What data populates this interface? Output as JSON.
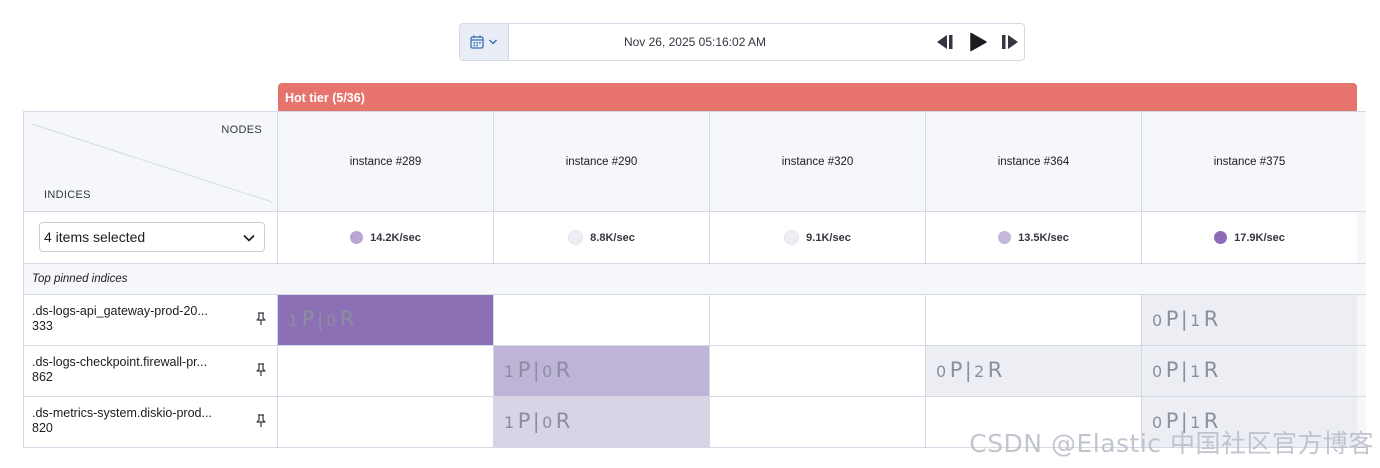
{
  "toolbar": {
    "datetime": "Nov 26, 2025 05:16:02 AM",
    "calendar_icon": "calendar-icon",
    "controls": [
      "step-back-icon",
      "play-icon",
      "step-forward-icon"
    ]
  },
  "tier": {
    "label": "Hot tier (5/36)",
    "color": "#e7746c"
  },
  "corner": {
    "nodes_label": "NODES",
    "indices_label": "INDICES"
  },
  "index_selector": {
    "value": "4 items selected"
  },
  "nodes": [
    {
      "name": "instance #289",
      "rate": "14.2K/sec",
      "dot_color": "#b9a6d6"
    },
    {
      "name": "instance #290",
      "rate": "8.8K/sec",
      "dot_color": "#eceef4"
    },
    {
      "name": "instance #320",
      "rate": "9.1K/sec",
      "dot_color": "#eceef4"
    },
    {
      "name": "instance #364",
      "rate": "13.5K/sec",
      "dot_color": "#c3b8dc"
    },
    {
      "name": "instance #375",
      "rate": "17.9K/sec",
      "dot_color": "#8d6bb8"
    }
  ],
  "pinned_label": "Top pinned indices",
  "indices": [
    {
      "name": ".ds-logs-api_gateway-prod-20...",
      "count": "333",
      "cells": [
        {
          "p": "1",
          "r": "0",
          "bg": "#8d6fb5",
          "shown": true
        },
        {
          "shown": false
        },
        {
          "shown": false
        },
        {
          "shown": false
        },
        {
          "p": "0",
          "r": "1",
          "bg": "#eceef4",
          "shown": true
        }
      ]
    },
    {
      "name": ".ds-logs-checkpoint.firewall-pr...",
      "count": "862",
      "cells": [
        {
          "shown": false
        },
        {
          "p": "1",
          "r": "0",
          "bg": "#bfb3d7",
          "shown": true
        },
        {
          "shown": false
        },
        {
          "p": "0",
          "r": "2",
          "bg": "#eceef4",
          "shown": true
        },
        {
          "p": "0",
          "r": "1",
          "bg": "#eceef4",
          "shown": true
        }
      ]
    },
    {
      "name": ".ds-metrics-system.diskio-prod...",
      "count": "820",
      "cells": [
        {
          "shown": false
        },
        {
          "p": "1",
          "r": "0",
          "bg": "#d9d3e6",
          "shown": true
        },
        {
          "shown": false
        },
        {
          "shown": false
        },
        {
          "p": "0",
          "r": "1",
          "bg": "#eceef4",
          "shown": true
        }
      ]
    }
  ],
  "shard_labels": {
    "primary": "P",
    "replica": "R",
    "separator": "|"
  },
  "watermark": "CSDN @Elastic 中国社区官方博客"
}
